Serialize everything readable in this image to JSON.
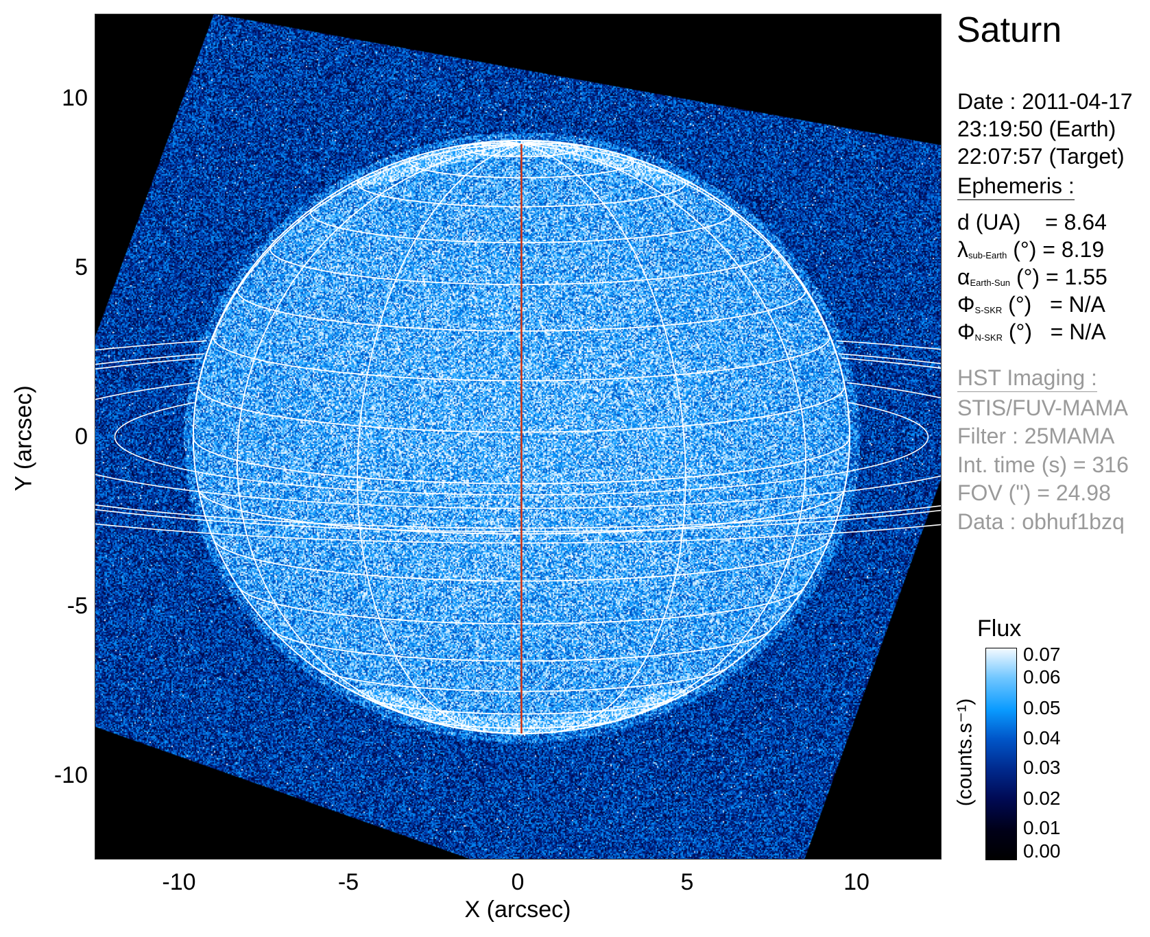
{
  "chart_data": {
    "type": "heatmap",
    "title": "Saturn",
    "xlabel": "X (arcsec)",
    "ylabel": "Y (arcsec)",
    "xlim": [
      -12.49,
      12.49
    ],
    "ylim": [
      -12.49,
      12.49
    ],
    "xticks": [
      "-10",
      "-5",
      "0",
      "5",
      "10"
    ],
    "xtick_values": [
      -10,
      -5,
      0,
      5,
      10
    ],
    "yticks": [
      "10",
      "5",
      "0",
      "-5",
      "-10"
    ],
    "ytick_values": [
      10,
      5,
      0,
      -5,
      -10
    ],
    "planet": {
      "equatorial_radius_arcsec": 9.68,
      "polar_ratio": 0.902,
      "center_arcsec": [
        0.1,
        0.0
      ],
      "sub_observer_latitude_deg": 8.19
    },
    "grid": {
      "latitude_step_deg": 10,
      "longitude_step_deg": 30
    },
    "rings_radii_req": [
      1.239,
      1.527,
      1.95,
      2.025,
      2.27
    ],
    "colorbar": {
      "title": "Flux",
      "label": "(counts.s⁻¹)",
      "range": [
        0.0,
        0.07
      ],
      "ticks": [
        "0.07",
        "0.06",
        "0.05",
        "0.04",
        "0.03",
        "0.02",
        "0.01",
        "0.00"
      ],
      "tick_values": [
        0.07,
        0.06,
        0.05,
        0.04,
        0.03,
        0.02,
        0.01,
        0.0
      ]
    },
    "flux_levels": {
      "background_mean": 0.033,
      "disk_mean": 0.052
    }
  },
  "header": {
    "title": "Saturn",
    "date": "Date : 2011-04-17",
    "time_earth": "23:19:50 (Earth)",
    "time_target": "22:07:57 (Target)"
  },
  "ephemeris": {
    "heading": "Ephemeris :",
    "rows": [
      {
        "sym": "d (UA)",
        "sub": "",
        "rest": "    = 8.64"
      },
      {
        "sym": "λ",
        "sub": "sub-Earth",
        "rest": " (°) = 8.19"
      },
      {
        "sym": "α",
        "sub": "Earth-Sun",
        "rest": " (°) = 1.55"
      },
      {
        "sym": "Φ",
        "sub": "S-SKR",
        "rest": " (°)   = N/A"
      },
      {
        "sym": "Φ",
        "sub": "N-SKR",
        "rest": " (°)   = N/A"
      }
    ]
  },
  "imaging": {
    "heading": "HST Imaging :",
    "instrument": "STIS/FUV-MAMA",
    "filter": "Filter : 25MAMA",
    "int_time": "Int. time (s) = 316",
    "fov": "FOV (\") = 24.98",
    "data": "Data : obhuf1bzq"
  },
  "colors": {
    "grid": "#ffffff",
    "meridian": "#d03010",
    "info_gray": "#9a9a9a"
  }
}
